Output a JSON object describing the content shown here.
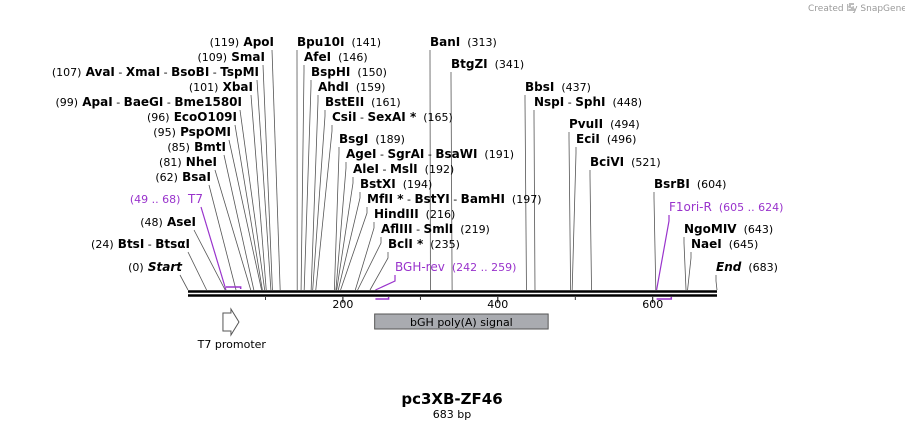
{
  "credit": {
    "prefix": "Created by",
    "brand": "SnapGene"
  },
  "sequence": {
    "name": "pc3XB-ZF46",
    "length_label": "683 bp",
    "length": 683
  },
  "axis_ticks": [
    {
      "value": 200,
      "label": "200"
    },
    {
      "value": 400,
      "label": "400"
    },
    {
      "value": 600,
      "label": "600"
    }
  ],
  "labels": [
    {
      "parts": [
        {
          "t": "(119)",
          "s": "n"
        },
        {
          "t": " ApoI",
          "s": "b"
        }
      ],
      "pos": 119
    },
    {
      "parts": [
        {
          "t": "(109)",
          "s": "n"
        },
        {
          "t": " SmaI",
          "s": "b"
        }
      ],
      "pos": 109
    },
    {
      "parts": [
        {
          "t": "(107)",
          "s": "n"
        },
        {
          "t": " AvaI",
          "s": "b"
        },
        {
          "t": " - ",
          "s": "n"
        },
        {
          "t": "XmaI",
          "s": "b"
        },
        {
          "t": " - ",
          "s": "n"
        },
        {
          "t": "BsoBI",
          "s": "b"
        },
        {
          "t": " - ",
          "s": "n"
        },
        {
          "t": "TspMI",
          "s": "b"
        }
      ],
      "pos": 107
    },
    {
      "parts": [
        {
          "t": "(101)",
          "s": "n"
        },
        {
          "t": " XbaI",
          "s": "b"
        }
      ],
      "pos": 101
    },
    {
      "parts": [
        {
          "t": "(99)",
          "s": "n"
        },
        {
          "t": " ApaI",
          "s": "b"
        },
        {
          "t": " - ",
          "s": "n"
        },
        {
          "t": "BaeGI",
          "s": "b"
        },
        {
          "t": " - ",
          "s": "n"
        },
        {
          "t": "Bme1580I",
          "s": "b"
        }
      ],
      "pos": 99
    },
    {
      "parts": [
        {
          "t": "(96)",
          "s": "n"
        },
        {
          "t": " EcoO109I",
          "s": "b"
        }
      ],
      "pos": 96
    },
    {
      "parts": [
        {
          "t": "(95)",
          "s": "n"
        },
        {
          "t": " PspOMI",
          "s": "b"
        }
      ],
      "pos": 95
    },
    {
      "parts": [
        {
          "t": "(85)",
          "s": "n"
        },
        {
          "t": " BmtI",
          "s": "b"
        }
      ],
      "pos": 85
    },
    {
      "parts": [
        {
          "t": "(81)",
          "s": "n"
        },
        {
          "t": " NheI",
          "s": "b"
        }
      ],
      "pos": 81
    },
    {
      "parts": [
        {
          "t": "(62)",
          "s": "n"
        },
        {
          "t": " BsaI",
          "s": "b"
        }
      ],
      "pos": 62
    },
    {
      "parts": [
        {
          "t": "(49 .. 68)",
          "s": "pn"
        },
        {
          "t": "  T7",
          "s": "p"
        }
      ],
      "pos": 49,
      "primer": true
    },
    {
      "parts": [
        {
          "t": "(48)",
          "s": "n"
        },
        {
          "t": " AseI",
          "s": "b"
        }
      ],
      "pos": 48
    },
    {
      "parts": [
        {
          "t": "(24)",
          "s": "n"
        },
        {
          "t": " BtsI",
          "s": "b"
        },
        {
          "t": " - ",
          "s": "n"
        },
        {
          "t": "BtsαI",
          "s": "b"
        }
      ],
      "pos": 24
    },
    {
      "parts": [
        {
          "t": "(0)",
          "s": "n"
        },
        {
          "t": " Start",
          "s": "b"
        }
      ],
      "pos": 0,
      "italic": true
    },
    {
      "parts": [
        {
          "t": "Bpu10I",
          "s": "b"
        },
        {
          "t": "  (141)",
          "s": "n"
        }
      ],
      "pos": 141
    },
    {
      "parts": [
        {
          "t": "AfeI",
          "s": "b"
        },
        {
          "t": "  (146)",
          "s": "n"
        }
      ],
      "pos": 146
    },
    {
      "parts": [
        {
          "t": "BspHI",
          "s": "b"
        },
        {
          "t": "  (150)",
          "s": "n"
        }
      ],
      "pos": 150
    },
    {
      "parts": [
        {
          "t": "AhdI",
          "s": "b"
        },
        {
          "t": "  (159)",
          "s": "n"
        }
      ],
      "pos": 159
    },
    {
      "parts": [
        {
          "t": "BstEII",
          "s": "b"
        },
        {
          "t": "  (161)",
          "s": "n"
        }
      ],
      "pos": 161
    },
    {
      "parts": [
        {
          "t": "CsiI",
          "s": "b"
        },
        {
          "t": " - ",
          "s": "n"
        },
        {
          "t": "SexAI *",
          "s": "b"
        },
        {
          "t": "  (165)",
          "s": "n"
        }
      ],
      "pos": 165
    },
    {
      "parts": [
        {
          "t": "BsgI",
          "s": "b"
        },
        {
          "t": "  (189)",
          "s": "n"
        }
      ],
      "pos": 189
    },
    {
      "parts": [
        {
          "t": "AgeI",
          "s": "b"
        },
        {
          "t": " - ",
          "s": "n"
        },
        {
          "t": "SgrAI",
          "s": "b"
        },
        {
          "t": " - ",
          "s": "n"
        },
        {
          "t": "BsaWI",
          "s": "b"
        },
        {
          "t": "  (191)",
          "s": "n"
        }
      ],
      "pos": 191
    },
    {
      "parts": [
        {
          "t": "AleI",
          "s": "b"
        },
        {
          "t": " - ",
          "s": "n"
        },
        {
          "t": "MslI",
          "s": "b"
        },
        {
          "t": "  (192)",
          "s": "n"
        }
      ],
      "pos": 192
    },
    {
      "parts": [
        {
          "t": "BstXI",
          "s": "b"
        },
        {
          "t": "  (194)",
          "s": "n"
        }
      ],
      "pos": 194
    },
    {
      "parts": [
        {
          "t": "MfII *",
          "s": "b"
        },
        {
          "t": " - ",
          "s": "n"
        },
        {
          "t": "BstYI",
          "s": "b"
        },
        {
          "t": " - ",
          "s": "n"
        },
        {
          "t": "BamHI",
          "s": "b"
        },
        {
          "t": "  (197)",
          "s": "n"
        }
      ],
      "pos": 197
    },
    {
      "parts": [
        {
          "t": "HindIII",
          "s": "b"
        },
        {
          "t": "  (216)",
          "s": "n"
        }
      ],
      "pos": 216
    },
    {
      "parts": [
        {
          "t": "AflIII",
          "s": "b"
        },
        {
          "t": " - ",
          "s": "n"
        },
        {
          "t": "SmlI",
          "s": "b"
        },
        {
          "t": "  (219)",
          "s": "n"
        }
      ],
      "pos": 219
    },
    {
      "parts": [
        {
          "t": "BclI *",
          "s": "b"
        },
        {
          "t": "  (235)",
          "s": "n"
        }
      ],
      "pos": 235
    },
    {
      "parts": [
        {
          "t": "BGH-rev",
          "s": "p"
        },
        {
          "t": "  (242 .. 259)",
          "s": "pn"
        }
      ],
      "pos": 242,
      "primer": true
    },
    {
      "parts": [
        {
          "t": "BanI",
          "s": "b"
        },
        {
          "t": "  (313)",
          "s": "n"
        }
      ],
      "pos": 313
    },
    {
      "parts": [
        {
          "t": "BtgZI",
          "s": "b"
        },
        {
          "t": "  (341)",
          "s": "n"
        }
      ],
      "pos": 341
    },
    {
      "parts": [
        {
          "t": "BbsI",
          "s": "b"
        },
        {
          "t": "  (437)",
          "s": "n"
        }
      ],
      "pos": 437
    },
    {
      "parts": [
        {
          "t": "NspI",
          "s": "b"
        },
        {
          "t": " - ",
          "s": "n"
        },
        {
          "t": "SphI",
          "s": "b"
        },
        {
          "t": "  (448)",
          "s": "n"
        }
      ],
      "pos": 448
    },
    {
      "parts": [
        {
          "t": "PvuII",
          "s": "b"
        },
        {
          "t": "  (494)",
          "s": "n"
        }
      ],
      "pos": 494
    },
    {
      "parts": [
        {
          "t": "EciI",
          "s": "b"
        },
        {
          "t": "  (496)",
          "s": "n"
        }
      ],
      "pos": 496
    },
    {
      "parts": [
        {
          "t": "BciVI",
          "s": "b"
        },
        {
          "t": "  (521)",
          "s": "n"
        }
      ],
      "pos": 521
    },
    {
      "parts": [
        {
          "t": "BsrBI",
          "s": "b"
        },
        {
          "t": "  (604)",
          "s": "n"
        }
      ],
      "pos": 604
    },
    {
      "parts": [
        {
          "t": "F1ori-R",
          "s": "p"
        },
        {
          "t": "  (605 .. 624)",
          "s": "pn"
        }
      ],
      "pos": 605,
      "primer": true
    },
    {
      "parts": [
        {
          "t": "NgoMIV",
          "s": "b"
        },
        {
          "t": "  (643)",
          "s": "n"
        }
      ],
      "pos": 643
    },
    {
      "parts": [
        {
          "t": "NaeI",
          "s": "b"
        },
        {
          "t": "  (645)",
          "s": "n"
        }
      ],
      "pos": 645
    },
    {
      "parts": [
        {
          "t": "End",
          "s": "b"
        },
        {
          "t": "  (683)",
          "s": "n"
        }
      ],
      "pos": 683,
      "italic": true
    }
  ],
  "features": [
    {
      "name": "T7 promoter",
      "start": 49,
      "end": 68,
      "type": "promoter"
    },
    {
      "name": "bGH poly(A) signal",
      "start": 241,
      "end": 465,
      "type": "polyA"
    }
  ],
  "colors": {
    "primer": "#9933cc",
    "polyA": "#a9abb0",
    "line": "#555555",
    "backbone": "#000000"
  }
}
